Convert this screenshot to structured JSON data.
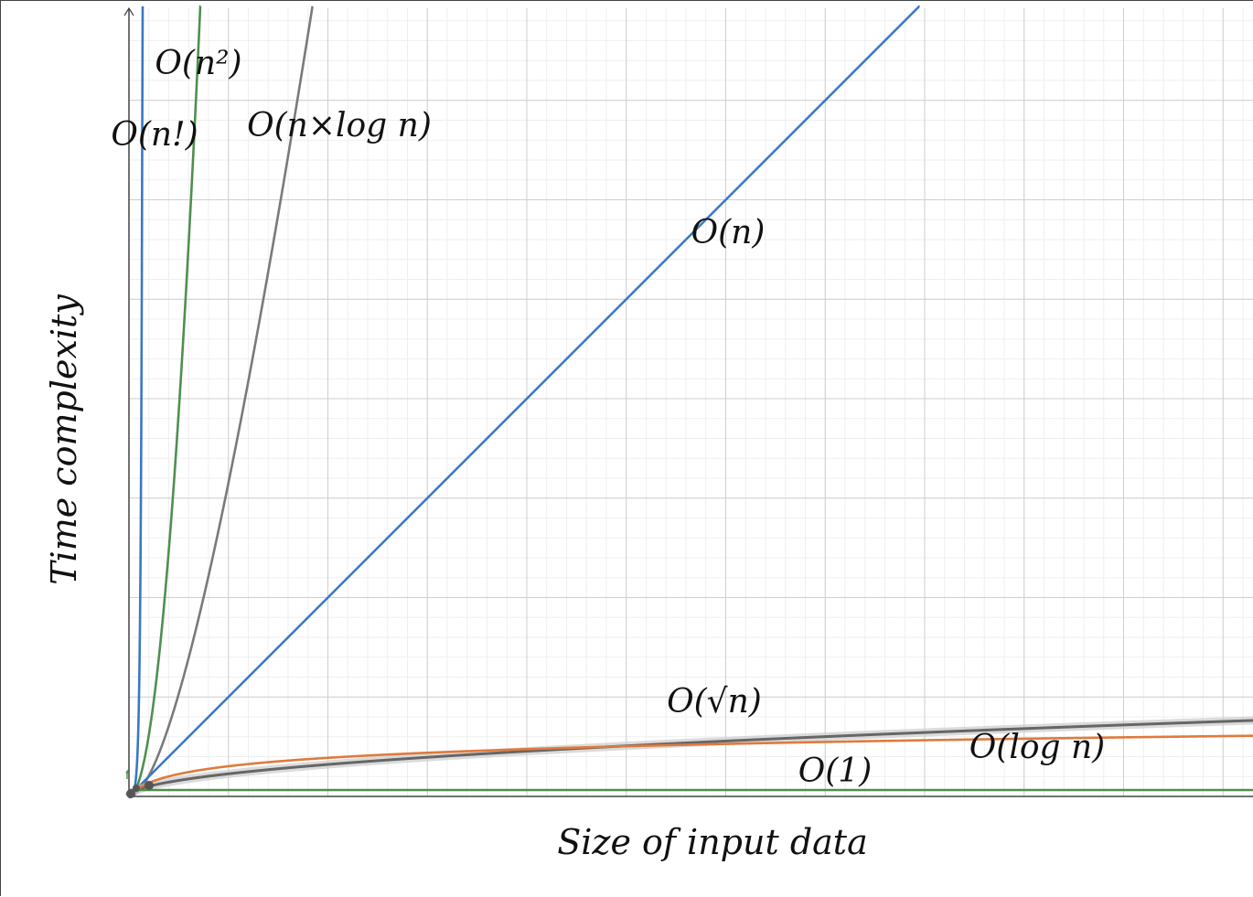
{
  "chart_data": {
    "type": "line",
    "title": "",
    "xlabel": "Size of input data",
    "ylabel": "Time complexity",
    "grid": true,
    "legend": "none",
    "axis_ticks_labeled": false,
    "series": [
      {
        "label": "O(n!)",
        "function": "factorial",
        "color": "#3a78c4"
      },
      {
        "label": "O(n²)",
        "function": "quadratic",
        "color": "#4f8f4f"
      },
      {
        "label": "O(n×log n)",
        "function": "linearithmic",
        "color": "#7a7a7a"
      },
      {
        "label": "O(n)",
        "function": "linear",
        "color": "#3a78c4"
      },
      {
        "label": "O(√n)",
        "function": "sqrt",
        "color": "#666666"
      },
      {
        "label": "O(log n)",
        "function": "logarithmic",
        "color": "#e07a3c"
      },
      {
        "label": "O(1)",
        "function": "constant",
        "color": "#4f8f4f"
      }
    ],
    "point_marker": "f"
  }
}
